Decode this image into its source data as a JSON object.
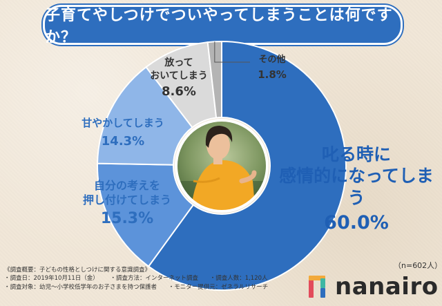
{
  "title": "子育てやしつけでついやってしまうことは何ですか？",
  "chart_data": {
    "type": "pie",
    "variant": "donut",
    "title": "子育てやしつけでついやってしまうことは何ですか？",
    "categories": [
      "叱る時に感情的になってしまう",
      "自分の考えを押し付けてしまう",
      "甘やかしてしまう",
      "放っておいてしまう",
      "その他"
    ],
    "values": [
      60.0,
      15.3,
      14.3,
      8.6,
      1.8
    ],
    "colors": [
      "#2e6ebe",
      "#5c93da",
      "#8fb6e8",
      "#dadada",
      "#b4b4b4"
    ],
    "labels": [
      {
        "lines": [
          "叱る時に",
          "感情的になってしまう"
        ],
        "pct": "60.0%"
      },
      {
        "lines": [
          "自分の考えを",
          "押し付けてしまう"
        ],
        "pct": "15.3%"
      },
      {
        "lines": [
          "甘やかしてしまう"
        ],
        "pct": "14.3%"
      },
      {
        "lines": [
          "放って",
          "おいてしまう"
        ],
        "pct": "8.6%"
      },
      {
        "lines": [
          "その他"
        ],
        "pct": "1.8%"
      }
    ],
    "sample_size": "（n=602人）"
  },
  "notes": {
    "heading": "《調査概要：子どもの性格としつけに関する意識調査》",
    "row1": [
      "・調査日：2019年10月11日（金）",
      "・調査方法：インターネット調査",
      "・調査人数：1,120人"
    ],
    "row2": [
      "・調査対象：幼児～小学校低学年のお子さまを持つ保護者",
      "・モニター提供元：ゼネラルリサーチ"
    ]
  },
  "logo": {
    "text": "nanairo",
    "colors": [
      "#e24b5b",
      "#f2a93b",
      "#3fb7a3",
      "#2e6ebe"
    ]
  }
}
